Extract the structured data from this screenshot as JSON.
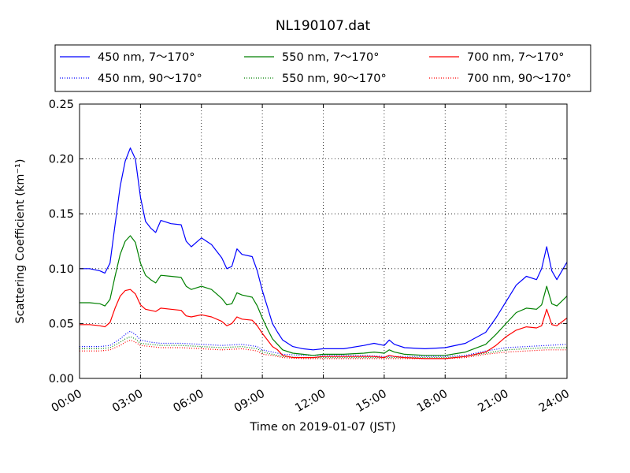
{
  "chart_data": {
    "type": "line",
    "title": "NL190107.dat",
    "xlabel": "Time on 2019-01-07 (JST)",
    "ylabel": "Scattering Coefficient (km⁻¹)",
    "xlim": [
      0,
      24
    ],
    "ylim": [
      0,
      0.25
    ],
    "x_ticks": [
      0,
      3,
      6,
      9,
      12,
      15,
      18,
      21,
      24
    ],
    "x_tick_labels": [
      "00:00",
      "03:00",
      "06:00",
      "09:00",
      "12:00",
      "15:00",
      "18:00",
      "21:00",
      "24:00"
    ],
    "y_ticks": [
      0,
      0.05,
      0.1,
      0.15,
      0.2,
      0.25
    ],
    "y_tick_labels": [
      "0.00",
      "0.05",
      "0.10",
      "0.15",
      "0.20",
      "0.25"
    ],
    "grid": true,
    "legend_position": "top",
    "x_unit": "hours",
    "series": [
      {
        "name": "450 nm, 7～170°",
        "color": "#0000ff",
        "style": "solid",
        "x": [
          0,
          0.5,
          1,
          1.25,
          1.5,
          1.75,
          2,
          2.25,
          2.5,
          2.75,
          3,
          3.25,
          3.5,
          3.75,
          4,
          4.5,
          5,
          5.25,
          5.5,
          6,
          6.5,
          7,
          7.25,
          7.5,
          7.75,
          8,
          8.5,
          8.75,
          9,
          9.25,
          9.5,
          9.75,
          10,
          10.5,
          11,
          11.5,
          12,
          13,
          14,
          14.5,
          15,
          15.25,
          15.5,
          16,
          17,
          18,
          19,
          20,
          20.5,
          21,
          21.5,
          22,
          22.5,
          22.75,
          23,
          23.25,
          23.5,
          24
        ],
        "values": [
          0.1,
          0.1,
          0.098,
          0.096,
          0.105,
          0.14,
          0.175,
          0.198,
          0.21,
          0.2,
          0.165,
          0.143,
          0.137,
          0.133,
          0.144,
          0.141,
          0.14,
          0.125,
          0.12,
          0.128,
          0.122,
          0.11,
          0.1,
          0.102,
          0.118,
          0.113,
          0.111,
          0.098,
          0.08,
          0.065,
          0.05,
          0.042,
          0.035,
          0.029,
          0.027,
          0.026,
          0.027,
          0.027,
          0.03,
          0.032,
          0.03,
          0.035,
          0.031,
          0.028,
          0.027,
          0.028,
          0.032,
          0.042,
          0.055,
          0.07,
          0.085,
          0.093,
          0.09,
          0.1,
          0.12,
          0.098,
          0.09,
          0.106
        ]
      },
      {
        "name": "550 nm, 7～170°",
        "color": "#008000",
        "style": "solid",
        "x": [
          0,
          0.5,
          1,
          1.25,
          1.5,
          1.75,
          2,
          2.25,
          2.5,
          2.75,
          3,
          3.25,
          3.5,
          3.75,
          4,
          4.5,
          5,
          5.25,
          5.5,
          6,
          6.5,
          7,
          7.25,
          7.5,
          7.75,
          8,
          8.5,
          8.75,
          9,
          9.25,
          9.5,
          9.75,
          10,
          10.5,
          11,
          11.5,
          12,
          13,
          14,
          14.5,
          15,
          15.25,
          15.5,
          16,
          17,
          18,
          19,
          20,
          20.5,
          21,
          21.5,
          22,
          22.5,
          22.75,
          23,
          23.25,
          23.5,
          24
        ],
        "values": [
          0.069,
          0.069,
          0.068,
          0.066,
          0.072,
          0.093,
          0.113,
          0.125,
          0.13,
          0.124,
          0.105,
          0.094,
          0.09,
          0.087,
          0.094,
          0.093,
          0.092,
          0.084,
          0.081,
          0.084,
          0.081,
          0.073,
          0.067,
          0.068,
          0.078,
          0.076,
          0.074,
          0.066,
          0.055,
          0.045,
          0.036,
          0.031,
          0.026,
          0.023,
          0.022,
          0.021,
          0.022,
          0.022,
          0.023,
          0.024,
          0.023,
          0.026,
          0.024,
          0.022,
          0.021,
          0.021,
          0.024,
          0.031,
          0.04,
          0.05,
          0.06,
          0.064,
          0.063,
          0.067,
          0.084,
          0.068,
          0.066,
          0.075
        ]
      },
      {
        "name": "700 nm, 7～170°",
        "color": "#ff0000",
        "style": "solid",
        "x": [
          0,
          0.5,
          1,
          1.25,
          1.5,
          1.75,
          2,
          2.25,
          2.5,
          2.75,
          3,
          3.25,
          3.5,
          3.75,
          4,
          4.5,
          5,
          5.25,
          5.5,
          6,
          6.5,
          7,
          7.25,
          7.5,
          7.75,
          8,
          8.5,
          8.75,
          9,
          9.25,
          9.5,
          9.75,
          10,
          10.5,
          11,
          11.5,
          12,
          13,
          14,
          14.5,
          15,
          15.25,
          15.5,
          16,
          17,
          18,
          19,
          20,
          20.5,
          21,
          21.5,
          22,
          22.5,
          22.75,
          23,
          23.25,
          23.5,
          24
        ],
        "values": [
          0.049,
          0.049,
          0.048,
          0.047,
          0.051,
          0.064,
          0.075,
          0.08,
          0.081,
          0.077,
          0.067,
          0.063,
          0.062,
          0.061,
          0.064,
          0.063,
          0.062,
          0.057,
          0.056,
          0.058,
          0.056,
          0.052,
          0.048,
          0.05,
          0.056,
          0.054,
          0.053,
          0.048,
          0.041,
          0.035,
          0.029,
          0.026,
          0.021,
          0.019,
          0.019,
          0.019,
          0.02,
          0.02,
          0.02,
          0.02,
          0.019,
          0.021,
          0.02,
          0.019,
          0.018,
          0.018,
          0.02,
          0.024,
          0.03,
          0.038,
          0.044,
          0.047,
          0.046,
          0.048,
          0.063,
          0.049,
          0.048,
          0.055
        ]
      },
      {
        "name": "450 nm, 90～170°",
        "color": "#0000ff",
        "style": "dotted",
        "x": [
          0,
          1,
          1.5,
          2,
          2.25,
          2.5,
          2.75,
          3,
          3.5,
          4,
          5,
          6,
          7,
          8,
          8.75,
          9,
          9.5,
          10,
          11,
          12,
          13,
          14,
          15,
          16,
          17,
          18,
          19,
          20,
          21,
          22,
          23,
          24
        ],
        "values": [
          0.029,
          0.029,
          0.03,
          0.036,
          0.04,
          0.043,
          0.04,
          0.035,
          0.033,
          0.032,
          0.032,
          0.031,
          0.03,
          0.031,
          0.029,
          0.026,
          0.024,
          0.022,
          0.021,
          0.021,
          0.021,
          0.021,
          0.02,
          0.02,
          0.02,
          0.02,
          0.021,
          0.025,
          0.028,
          0.029,
          0.03,
          0.031
        ]
      },
      {
        "name": "550 nm, 90～170°",
        "color": "#008000",
        "style": "dotted",
        "x": [
          0,
          1,
          1.5,
          2,
          2.25,
          2.5,
          2.75,
          3,
          3.5,
          4,
          5,
          6,
          7,
          8,
          8.75,
          9,
          9.5,
          10,
          11,
          12,
          13,
          14,
          15,
          16,
          17,
          18,
          19,
          20,
          21,
          22,
          23,
          24
        ],
        "values": [
          0.027,
          0.027,
          0.028,
          0.033,
          0.036,
          0.038,
          0.036,
          0.032,
          0.031,
          0.03,
          0.03,
          0.029,
          0.028,
          0.029,
          0.027,
          0.024,
          0.022,
          0.02,
          0.019,
          0.019,
          0.019,
          0.019,
          0.019,
          0.019,
          0.019,
          0.019,
          0.02,
          0.023,
          0.026,
          0.027,
          0.028,
          0.028
        ]
      },
      {
        "name": "700 nm, 90～170°",
        "color": "#ff0000",
        "style": "dotted",
        "x": [
          0,
          1,
          1.5,
          2,
          2.25,
          2.5,
          2.75,
          3,
          3.5,
          4,
          5,
          6,
          7,
          8,
          8.75,
          9,
          9.5,
          10,
          11,
          12,
          13,
          14,
          15,
          16,
          17,
          18,
          19,
          20,
          21,
          22,
          23,
          24
        ],
        "values": [
          0.025,
          0.025,
          0.026,
          0.03,
          0.033,
          0.035,
          0.033,
          0.03,
          0.029,
          0.028,
          0.028,
          0.027,
          0.026,
          0.027,
          0.025,
          0.022,
          0.021,
          0.019,
          0.018,
          0.018,
          0.018,
          0.018,
          0.018,
          0.018,
          0.018,
          0.018,
          0.019,
          0.022,
          0.024,
          0.025,
          0.026,
          0.026
        ]
      }
    ]
  }
}
